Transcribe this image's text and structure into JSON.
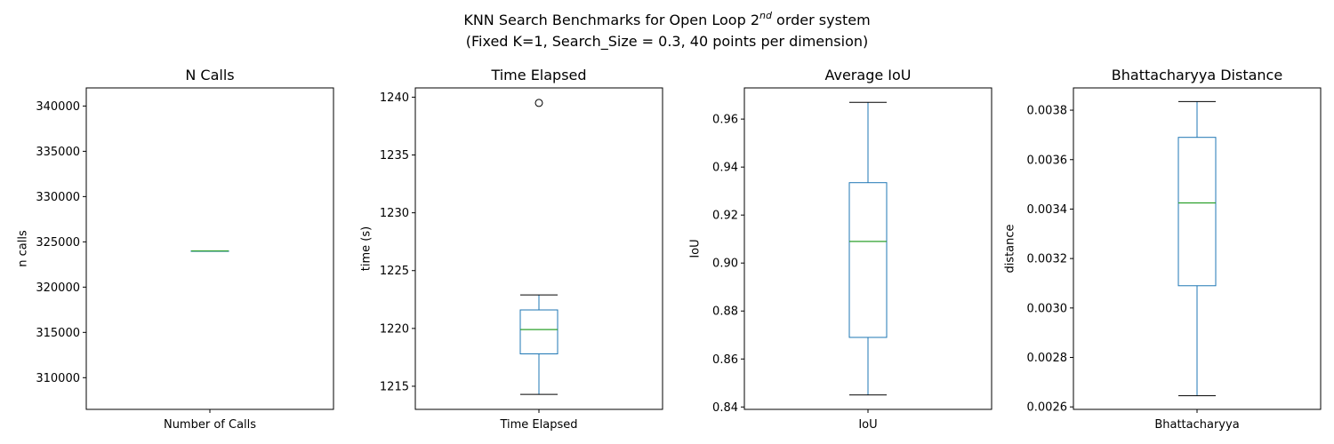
{
  "figure": {
    "title_line1_prefix": "KNN Search Benchmarks for Open Loop 2",
    "title_line1_sup": "nd",
    "title_line1_suffix": " order system",
    "title_line2": "(Fixed K=1, Search_Size = 0.3, 40 points per dimension)"
  },
  "colors": {
    "box": "#1f77b4",
    "median": "#2ca02c",
    "whisker": "#1f77b4",
    "cap": "#000000",
    "flier": "#000000",
    "frame": "#000000"
  },
  "chart_data": [
    {
      "type": "box",
      "title": "N Calls",
      "ylabel": "n calls",
      "category": "Number of Calls",
      "ylim": [
        306500,
        342000
      ],
      "yticks": [
        310000,
        315000,
        320000,
        325000,
        330000,
        335000,
        340000
      ],
      "ytick_labels": [
        "310000",
        "315000",
        "320000",
        "325000",
        "330000",
        "335000",
        "340000"
      ],
      "stats": {
        "whislo": 324000,
        "q1": 324000,
        "med": 324000,
        "q3": 324000,
        "whishi": 324000
      },
      "fliers": []
    },
    {
      "type": "box",
      "title": "Time Elapsed",
      "ylabel": "time (s)",
      "category": "Time Elapsed",
      "ylim": [
        1213,
        1240.8
      ],
      "yticks": [
        1215,
        1220,
        1225,
        1230,
        1235,
        1240
      ],
      "ytick_labels": [
        "1215",
        "1220",
        "1225",
        "1230",
        "1235",
        "1240"
      ],
      "stats": {
        "whislo": 1214.3,
        "q1": 1217.8,
        "med": 1219.9,
        "q3": 1221.6,
        "whishi": 1222.9
      },
      "fliers": [
        1239.5
      ]
    },
    {
      "type": "box",
      "title": "Average IoU",
      "ylabel": "IoU",
      "category": "IoU",
      "ylim": [
        0.839,
        0.973
      ],
      "yticks": [
        0.84,
        0.86,
        0.88,
        0.9,
        0.92,
        0.94,
        0.96
      ],
      "ytick_labels": [
        "0.84",
        "0.86",
        "0.88",
        "0.90",
        "0.92",
        "0.94",
        "0.96"
      ],
      "stats": {
        "whislo": 0.845,
        "q1": 0.869,
        "med": 0.909,
        "q3": 0.9335,
        "whishi": 0.967
      },
      "fliers": []
    },
    {
      "type": "box",
      "title": "Bhattacharyya Distance",
      "ylabel": "distance",
      "category": "Bhattacharyya",
      "ylim": [
        0.00259,
        0.00389
      ],
      "yticks": [
        0.0026,
        0.0028,
        0.003,
        0.0032,
        0.0034,
        0.0036,
        0.0038
      ],
      "ytick_labels": [
        "0.0026",
        "0.0028",
        "0.0030",
        "0.0032",
        "0.0034",
        "0.0036",
        "0.0038"
      ],
      "stats": {
        "whislo": 0.002645,
        "q1": 0.00309,
        "med": 0.003425,
        "q3": 0.00369,
        "whishi": 0.003835
      },
      "fliers": []
    }
  ]
}
